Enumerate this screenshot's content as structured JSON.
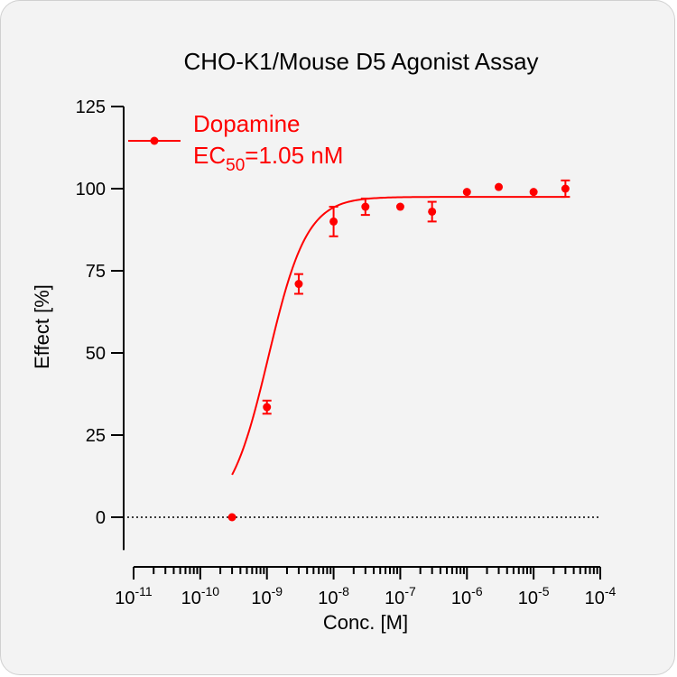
{
  "chart_data": {
    "type": "scatter",
    "title": "CHO-K1/Mouse D5 Agonist Assay",
    "xlabel": "Conc. [M]",
    "ylabel": "Effect  [%]",
    "x_scale": "log",
    "xlim": [
      1e-11,
      0.0001
    ],
    "ylim": [
      -10,
      125
    ],
    "y_ticks": [
      0,
      25,
      50,
      75,
      100,
      125
    ],
    "x_tick_exponents": [
      "-11",
      "-10",
      "-9",
      "-8",
      "-7",
      "-6",
      "-5",
      "-4"
    ],
    "x_tick_base": "10",
    "zero_line": "dotted",
    "color": "#ff0000",
    "legend": {
      "placement": "top-left",
      "name": "Dopamine",
      "ec_main": "EC",
      "ec_sub": "50",
      "ec_value": "=1.05 nM"
    },
    "series": [
      {
        "name": "Dopamine",
        "points": [
          {
            "x": 3e-10,
            "y": 0,
            "err": 0
          },
          {
            "x": 1e-09,
            "y": 33.5,
            "err": 2
          },
          {
            "x": 3e-09,
            "y": 71,
            "err": 3
          },
          {
            "x": 1e-08,
            "y": 90,
            "err": 4.5
          },
          {
            "x": 3e-08,
            "y": 94.5,
            "err": 2.5
          },
          {
            "x": 1e-07,
            "y": 94.5,
            "err": 0
          },
          {
            "x": 3e-07,
            "y": 93,
            "err": 3
          },
          {
            "x": 1e-06,
            "y": 99,
            "err": 0
          },
          {
            "x": 3e-06,
            "y": 100.5,
            "err": 0
          },
          {
            "x": 1e-05,
            "y": 99,
            "err": 0
          },
          {
            "x": 3e-05,
            "y": 100,
            "err": 2.5
          }
        ],
        "fit": {
          "model": "four-parameter logistic",
          "bottom": 0,
          "top": 97.5,
          "ec50": 1.05e-09,
          "hill_slope": 1.5
        }
      }
    ]
  }
}
